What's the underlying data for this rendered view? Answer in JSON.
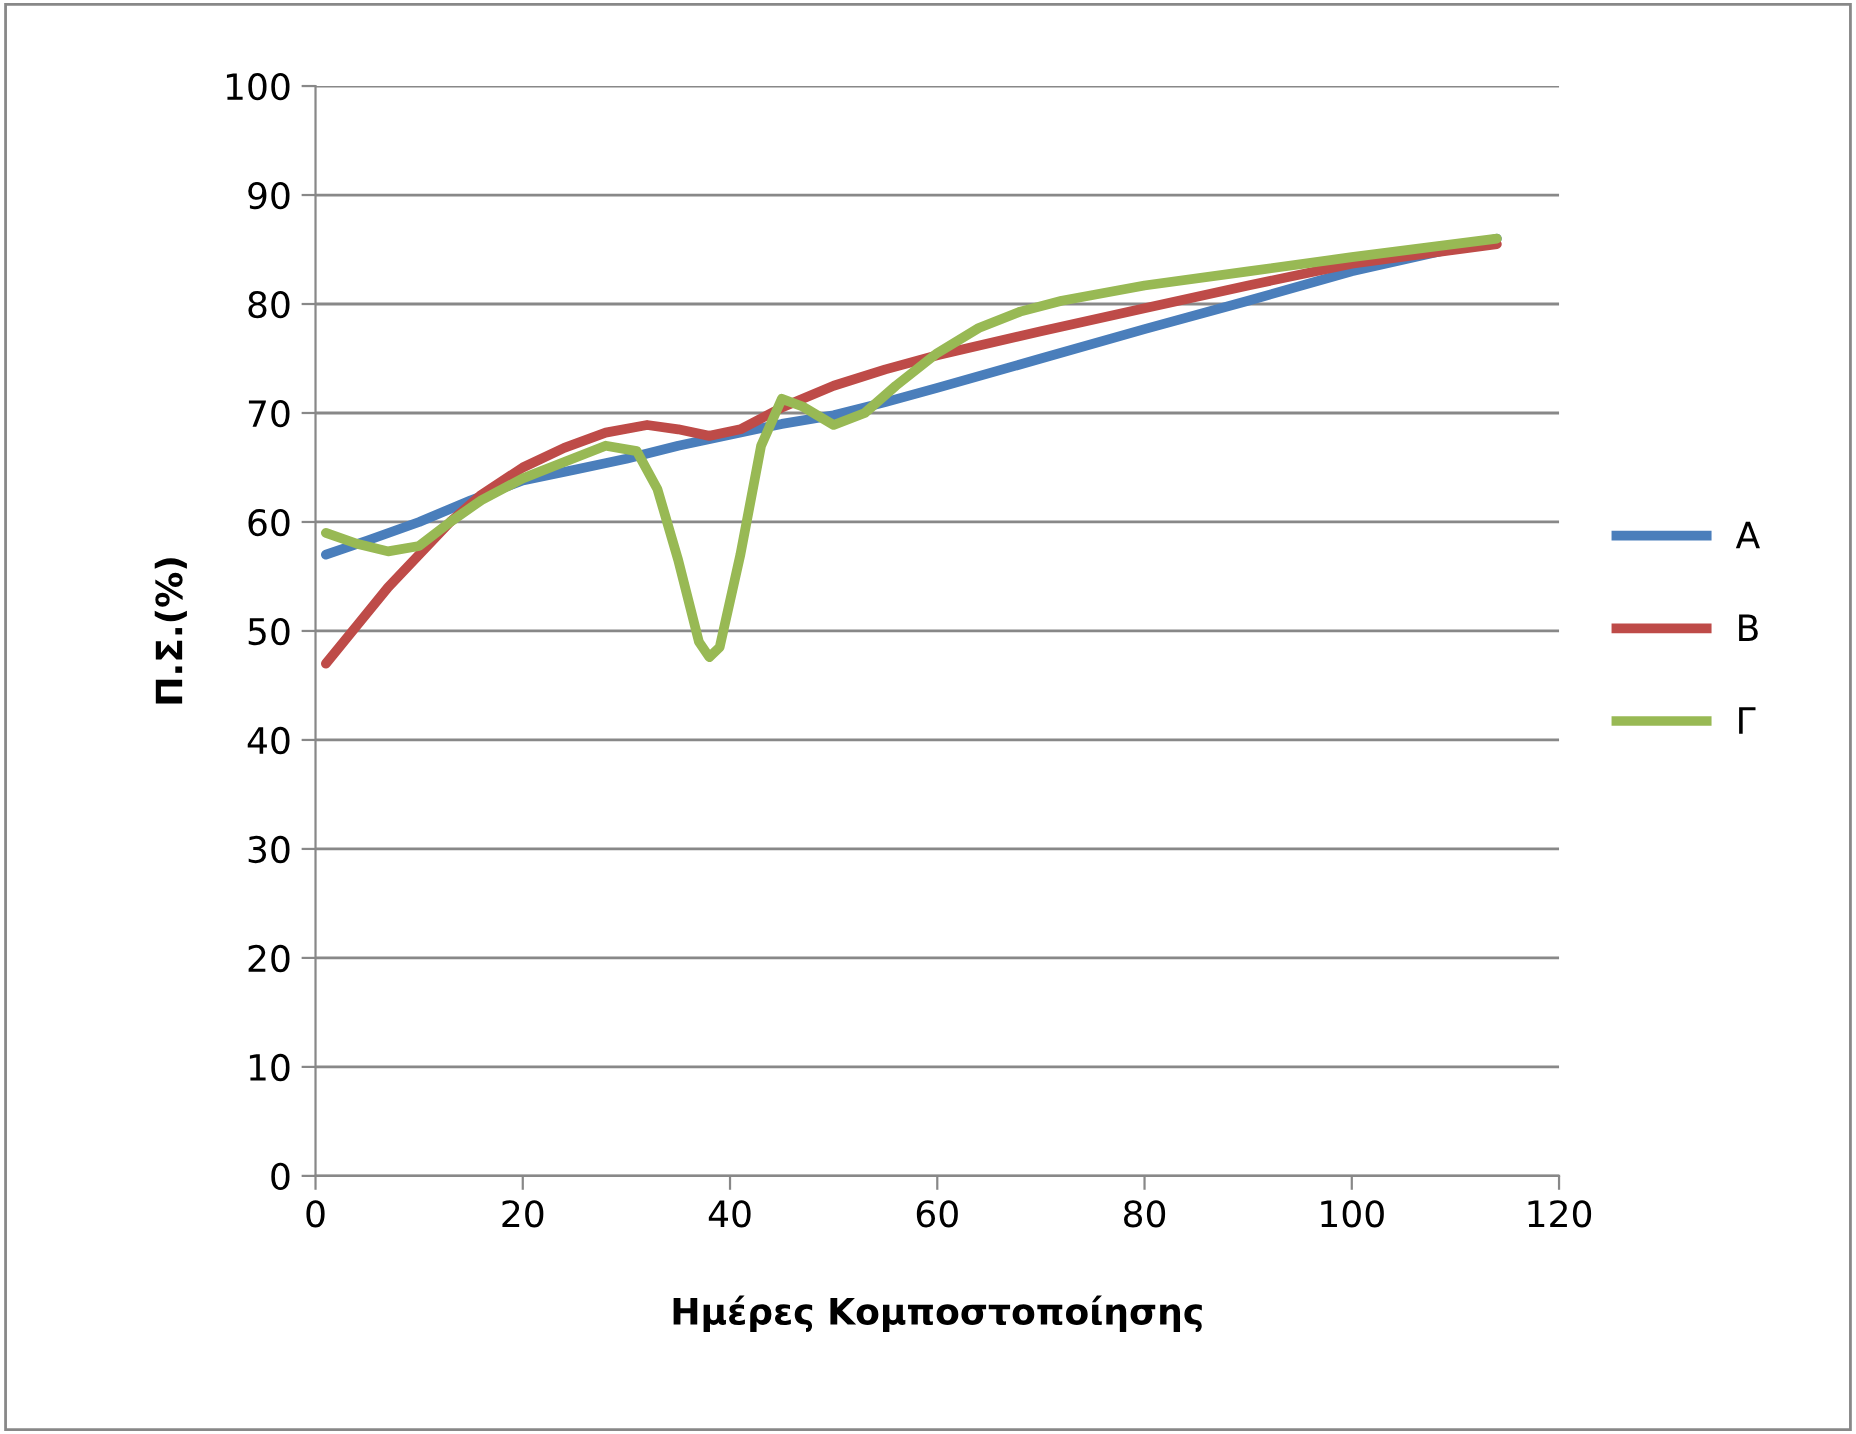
{
  "chart_data": {
    "type": "line",
    "xlabel": "Ημέρες Κομποστοποίησης",
    "ylabel": "Π.Σ.(%)",
    "xlim": [
      0,
      120
    ],
    "xticks": [
      0,
      20,
      40,
      60,
      80,
      100,
      120
    ],
    "ylim": [
      0,
      100
    ],
    "yticks": [
      0,
      10,
      20,
      30,
      40,
      50,
      60,
      70,
      80,
      90,
      100
    ],
    "grid": "y",
    "legend": "right",
    "marker": "none",
    "line_style": "solid",
    "series": [
      {
        "name": "A",
        "color": "#4a7ebb",
        "x": [
          1,
          5,
          10,
          15,
          20,
          25,
          30,
          35,
          40,
          45,
          50,
          55,
          60,
          70,
          80,
          90,
          100,
          114
        ],
        "values": [
          57,
          58.3,
          60,
          62,
          63.8,
          64.8,
          65.8,
          67,
          68,
          69,
          69.8,
          71,
          72.3,
          75,
          77.7,
          80.3,
          83,
          86
        ]
      },
      {
        "name": "B",
        "color": "#be4b48",
        "x": [
          1,
          4,
          7,
          10,
          13,
          16,
          20,
          24,
          28,
          32,
          35,
          38,
          41,
          45,
          50,
          55,
          60,
          70,
          80,
          90,
          100,
          114
        ],
        "values": [
          47,
          50.5,
          54,
          57,
          60,
          62.5,
          65,
          66.8,
          68.2,
          68.9,
          68.5,
          67.9,
          68.5,
          70.5,
          72.5,
          74,
          75.3,
          77.5,
          79.6,
          81.7,
          83.7,
          85.5
        ]
      },
      {
        "name": "Γ",
        "color": "#98b954",
        "x": [
          1,
          4,
          7,
          10,
          13,
          16,
          20,
          24,
          28,
          31,
          33,
          35,
          37,
          38,
          39,
          41,
          43,
          45,
          47,
          50,
          53,
          56,
          60,
          64,
          68,
          72,
          80,
          90,
          100,
          114
        ],
        "values": [
          59,
          58,
          57.3,
          57.8,
          60,
          62,
          64,
          65.5,
          67,
          66.5,
          63,
          56.5,
          49,
          47.6,
          48.5,
          57,
          67,
          71.3,
          70.6,
          68.9,
          70,
          72.5,
          75.5,
          77.8,
          79.3,
          80.3,
          81.7,
          83,
          84.3,
          86
        ]
      }
    ]
  }
}
